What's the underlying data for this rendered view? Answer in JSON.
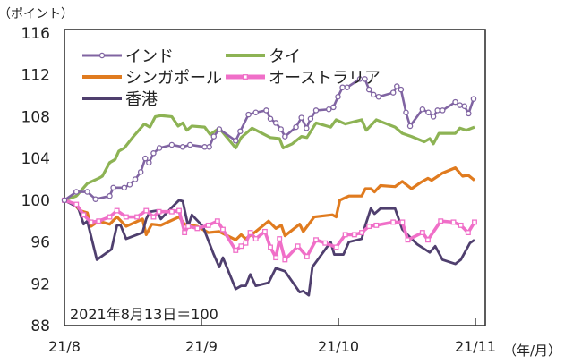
{
  "chart_data": {
    "type": "line",
    "unit_label": "（ポイント）",
    "x_unit_label": "（年/月）",
    "annotation": "2021年8月13日＝100",
    "ylim": [
      88,
      116
    ],
    "yticks": [
      88,
      92,
      96,
      100,
      104,
      108,
      112,
      116
    ],
    "xlim": [
      0,
      90
    ],
    "xticks": [
      {
        "x": 0,
        "label": "21/8"
      },
      {
        "x": 30,
        "label": "21/9"
      },
      {
        "x": 60,
        "label": "21/10"
      },
      {
        "x": 90,
        "label": "21/11"
      }
    ],
    "grid": false,
    "legend_position": "top-left",
    "series": [
      {
        "name": "インド",
        "color": "#8064a2",
        "marker": "circle",
        "points": [
          [
            0,
            100
          ],
          [
            2.6,
            100.8
          ],
          [
            5,
            100.8
          ],
          [
            6.8,
            100.1
          ],
          [
            9.9,
            100.4
          ],
          [
            10.7,
            101.2
          ],
          [
            13.1,
            101.2
          ],
          [
            14.3,
            101.5
          ],
          [
            15.5,
            102.0
          ],
          [
            16.7,
            102.7
          ],
          [
            17.7,
            104.0
          ],
          [
            18.5,
            103.6
          ],
          [
            19.5,
            104.5
          ],
          [
            20.8,
            105.0
          ],
          [
            23.5,
            105.3
          ],
          [
            25.9,
            105.1
          ],
          [
            27.5,
            105.3
          ],
          [
            30.7,
            105.1
          ],
          [
            31.7,
            105.1
          ],
          [
            32.7,
            106.1
          ],
          [
            33.9,
            106.8
          ],
          [
            37.5,
            105.7
          ],
          [
            38.5,
            106.6
          ],
          [
            40.3,
            108.2
          ],
          [
            41.9,
            108.4
          ],
          [
            44.2,
            108.6
          ],
          [
            45.1,
            107.8
          ],
          [
            46.3,
            107.4
          ],
          [
            47.4,
            106.8
          ],
          [
            48.3,
            106.1
          ],
          [
            50.7,
            107.0
          ],
          [
            51.9,
            107.9
          ],
          [
            53.0,
            106.9
          ],
          [
            53.9,
            107.8
          ],
          [
            55.1,
            108.6
          ],
          [
            57.9,
            108.7
          ],
          [
            58.9,
            108.9
          ],
          [
            59.9,
            109.9
          ],
          [
            60.9,
            110.8
          ],
          [
            61.9,
            110.8
          ],
          [
            64.7,
            111.6
          ],
          [
            65.8,
            111.6
          ],
          [
            66.7,
            110.6
          ],
          [
            67.7,
            110.1
          ],
          [
            68.8,
            109.9
          ],
          [
            72.0,
            110.3
          ],
          [
            72.8,
            110.9
          ],
          [
            73.7,
            110.6
          ],
          [
            74.8,
            108.4
          ],
          [
            75.7,
            107.1
          ],
          [
            78.4,
            108.7
          ],
          [
            79.7,
            108.4
          ],
          [
            80.8,
            108.0
          ],
          [
            81.7,
            108.6
          ],
          [
            82.8,
            108.6
          ],
          [
            85.6,
            109.4
          ],
          [
            86.6,
            109.1
          ],
          [
            87.6,
            109.0
          ],
          [
            88.5,
            108.3
          ],
          [
            89.6,
            109.7
          ]
        ]
      },
      {
        "name": "タイ",
        "color": "#8db354",
        "marker": "none",
        "points": [
          [
            0,
            100
          ],
          [
            2.6,
            100.4
          ],
          [
            5,
            101.6
          ],
          [
            7.5,
            102.1
          ],
          [
            8.3,
            102.3
          ],
          [
            9.9,
            103.6
          ],
          [
            11.1,
            103.9
          ],
          [
            11.9,
            104.7
          ],
          [
            13.1,
            105.0
          ],
          [
            15.1,
            106.1
          ],
          [
            17.5,
            107.3
          ],
          [
            18.7,
            107.0
          ],
          [
            19.9,
            108.0
          ],
          [
            21.1,
            108.1
          ],
          [
            23.5,
            108.0
          ],
          [
            24.9,
            107.1
          ],
          [
            25.9,
            107.4
          ],
          [
            26.8,
            106.7
          ],
          [
            27.9,
            107.1
          ],
          [
            30.7,
            107.0
          ],
          [
            31.9,
            106.3
          ],
          [
            33.9,
            106.9
          ],
          [
            37.5,
            105.0
          ],
          [
            38.7,
            106.0
          ],
          [
            41.1,
            106.9
          ],
          [
            45.1,
            106.0
          ],
          [
            47.1,
            105.9
          ],
          [
            47.9,
            105.0
          ],
          [
            49.9,
            105.4
          ],
          [
            51.9,
            106.1
          ],
          [
            53.1,
            106.0
          ],
          [
            55.1,
            107.4
          ],
          [
            58.3,
            107.0
          ],
          [
            59.5,
            107.7
          ],
          [
            61.5,
            107.3
          ],
          [
            65.1,
            107.7
          ],
          [
            66.1,
            106.7
          ],
          [
            68.3,
            107.7
          ],
          [
            72.4,
            107.0
          ],
          [
            74.0,
            106.4
          ],
          [
            76.0,
            106.1
          ],
          [
            78.8,
            105.6
          ],
          [
            80.0,
            105.9
          ],
          [
            80.8,
            105.4
          ],
          [
            82.0,
            106.4
          ],
          [
            85.6,
            106.4
          ],
          [
            86.6,
            106.9
          ],
          [
            88.0,
            106.7
          ],
          [
            89.8,
            107.0
          ]
        ]
      },
      {
        "name": "シンガポール",
        "color": "#e07b1f",
        "marker": "none",
        "points": [
          [
            0,
            100
          ],
          [
            2.2,
            99.6
          ],
          [
            3.4,
            99.0
          ],
          [
            5,
            98.8
          ],
          [
            5.8,
            97.5
          ],
          [
            7.5,
            98.0
          ],
          [
            9.9,
            97.7
          ],
          [
            11.5,
            98.4
          ],
          [
            13.5,
            97.5
          ],
          [
            17.1,
            98.2
          ],
          [
            17.9,
            96.7
          ],
          [
            19.1,
            97.7
          ],
          [
            21.1,
            97.6
          ],
          [
            25.1,
            98.4
          ],
          [
            26.3,
            97.7
          ],
          [
            29.1,
            97.5
          ],
          [
            31.5,
            96.9
          ],
          [
            33.9,
            97.0
          ],
          [
            37.5,
            96.2
          ],
          [
            38.7,
            96.7
          ],
          [
            39.7,
            96.3
          ],
          [
            41.9,
            97.0
          ],
          [
            44.7,
            98.0
          ],
          [
            46.3,
            97.3
          ],
          [
            47.5,
            97.6
          ],
          [
            48.3,
            96.6
          ],
          [
            51.5,
            97.7
          ],
          [
            52.3,
            97.0
          ],
          [
            54.7,
            98.4
          ],
          [
            58.7,
            98.6
          ],
          [
            59.5,
            98.4
          ],
          [
            60.3,
            100.0
          ],
          [
            62.3,
            100.4
          ],
          [
            65.1,
            100.4
          ],
          [
            65.9,
            101.1
          ],
          [
            67.1,
            101.1
          ],
          [
            67.9,
            100.8
          ],
          [
            69.2,
            101.4
          ],
          [
            72.4,
            101.3
          ],
          [
            74.0,
            101.8
          ],
          [
            76.0,
            101.1
          ],
          [
            78.0,
            101.7
          ],
          [
            79.6,
            102.1
          ],
          [
            80.4,
            101.9
          ],
          [
            82.8,
            102.6
          ],
          [
            85.6,
            103.1
          ],
          [
            87.2,
            102.3
          ],
          [
            88.4,
            102.4
          ],
          [
            89.8,
            101.9
          ]
        ]
      },
      {
        "name": "オーストラリア",
        "color": "#f06fc8",
        "marker": "square",
        "points": [
          [
            0,
            100
          ],
          [
            2.6,
            99.6
          ],
          [
            4.2,
            98.6
          ],
          [
            5.8,
            97.9
          ],
          [
            7.5,
            98.0
          ],
          [
            9.9,
            98.4
          ],
          [
            11.5,
            99.0
          ],
          [
            13.5,
            98.4
          ],
          [
            15.9,
            98.4
          ],
          [
            17.9,
            99.0
          ],
          [
            19.5,
            98.4
          ],
          [
            20.7,
            98.9
          ],
          [
            23.5,
            98.9
          ],
          [
            25.1,
            99.0
          ],
          [
            26.3,
            96.9
          ],
          [
            27.1,
            97.5
          ],
          [
            29.1,
            97.3
          ],
          [
            31.5,
            97.6
          ],
          [
            33.5,
            98.0
          ],
          [
            34.7,
            97.2
          ],
          [
            37.5,
            95.2
          ],
          [
            38.7,
            95.6
          ],
          [
            39.7,
            95.9
          ],
          [
            40.7,
            96.9
          ],
          [
            41.9,
            96.3
          ],
          [
            43.9,
            97.0
          ],
          [
            45.1,
            95.5
          ],
          [
            46.3,
            94.5
          ],
          [
            47.1,
            96.3
          ],
          [
            48.3,
            94.3
          ],
          [
            51.1,
            95.6
          ],
          [
            53.1,
            94.6
          ],
          [
            55.1,
            96.2
          ],
          [
            57.1,
            95.9
          ],
          [
            59.5,
            95.5
          ],
          [
            61.5,
            96.7
          ],
          [
            63.5,
            96.7
          ],
          [
            65.1,
            96.9
          ],
          [
            66.7,
            97.5
          ],
          [
            68.3,
            97.6
          ],
          [
            72.0,
            97.9
          ],
          [
            74.0,
            97.9
          ],
          [
            75.2,
            96.2
          ],
          [
            78.4,
            96.9
          ],
          [
            79.6,
            96.2
          ],
          [
            82.4,
            98.0
          ],
          [
            85.2,
            97.9
          ],
          [
            86.8,
            97.6
          ],
          [
            88.4,
            96.9
          ],
          [
            89.8,
            97.9
          ]
        ]
      },
      {
        "name": "香港",
        "color": "#4f3f6e",
        "marker": "none",
        "points": [
          [
            0,
            100
          ],
          [
            3.0,
            99.3
          ],
          [
            4.2,
            97.7
          ],
          [
            5,
            98.0
          ],
          [
            7.1,
            94.3
          ],
          [
            10.3,
            95.3
          ],
          [
            11.5,
            97.6
          ],
          [
            12.3,
            97.6
          ],
          [
            13.5,
            96.3
          ],
          [
            17.1,
            96.9
          ],
          [
            17.9,
            98.2
          ],
          [
            18.7,
            98.9
          ],
          [
            20.3,
            99.0
          ],
          [
            21.1,
            98.2
          ],
          [
            23.5,
            99.3
          ],
          [
            25.1,
            100.0
          ],
          [
            25.9,
            99.9
          ],
          [
            27.1,
            97.5
          ],
          [
            27.9,
            98.6
          ],
          [
            30.3,
            97.5
          ],
          [
            32.7,
            94.8
          ],
          [
            33.9,
            93.6
          ],
          [
            34.7,
            94.5
          ],
          [
            37.5,
            91.5
          ],
          [
            38.7,
            91.8
          ],
          [
            39.7,
            91.8
          ],
          [
            40.7,
            92.9
          ],
          [
            41.9,
            91.8
          ],
          [
            44.7,
            92.1
          ],
          [
            46.3,
            93.5
          ],
          [
            48.3,
            93.2
          ],
          [
            51.5,
            91.2
          ],
          [
            52.3,
            91.3
          ],
          [
            53.5,
            90.9
          ],
          [
            54.3,
            93.6
          ],
          [
            58.3,
            96.0
          ],
          [
            59.1,
            94.8
          ],
          [
            61.1,
            94.8
          ],
          [
            62.3,
            96.0
          ],
          [
            65.1,
            96.3
          ],
          [
            65.9,
            97.6
          ],
          [
            67.1,
            99.2
          ],
          [
            67.9,
            98.7
          ],
          [
            69.2,
            99.2
          ],
          [
            72.4,
            99.2
          ],
          [
            74.0,
            97.2
          ],
          [
            77.2,
            95.8
          ],
          [
            80.0,
            95.0
          ],
          [
            81.2,
            95.6
          ],
          [
            82.8,
            94.3
          ],
          [
            85.6,
            93.9
          ],
          [
            86.8,
            94.3
          ],
          [
            88.8,
            95.9
          ],
          [
            89.8,
            96.2
          ]
        ]
      }
    ]
  }
}
